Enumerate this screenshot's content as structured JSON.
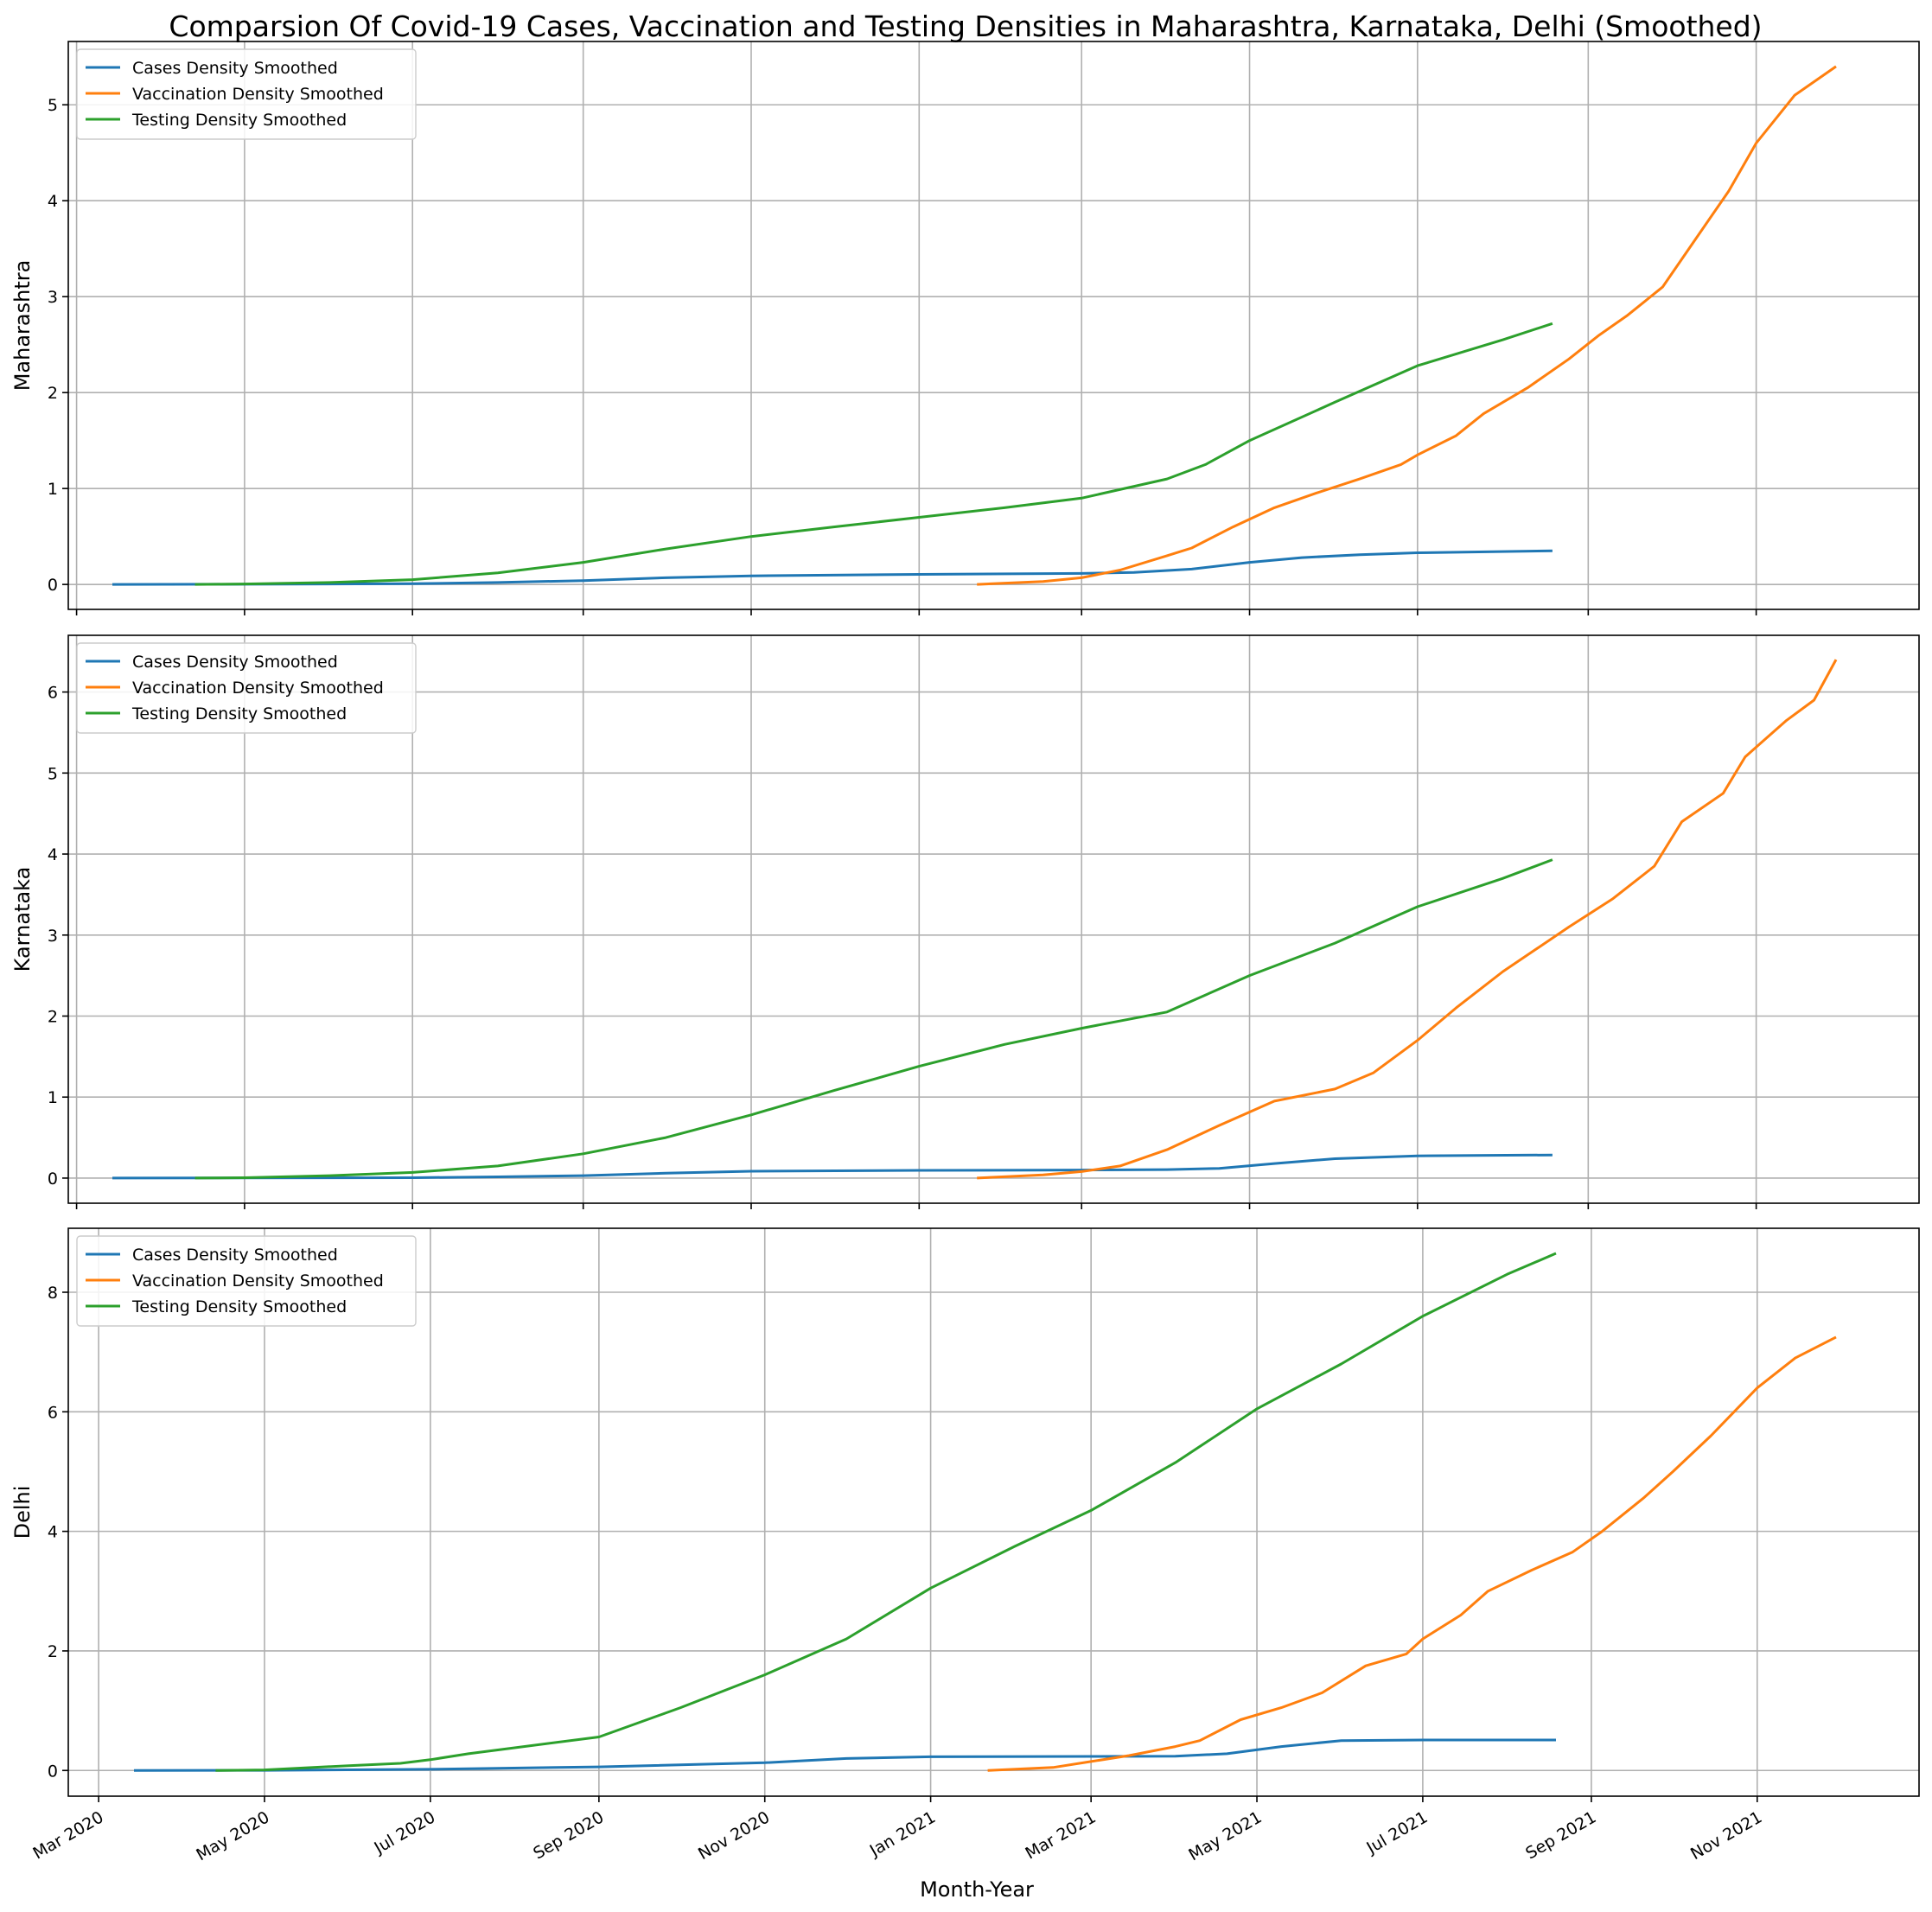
{
  "figure": {
    "title": "Comparsion Of Covid-19 Cases, Vaccination and Testing Densities in Maharashtra, Karnataka, Delhi (Smoothed)",
    "xlabel": "Month-Year"
  },
  "colors": {
    "cases": "#1f77b4",
    "vaccination": "#ff7f0e",
    "testing": "#2ca02c"
  },
  "chart_data": [
    {
      "type": "line",
      "ylabel": "Maharashtra",
      "grid": true,
      "legend_position": "top-left",
      "xlim": [
        "2020-02-14",
        "2021-11-24"
      ],
      "ylim": [
        -0.26,
        5.66
      ],
      "yticks": [
        0,
        1,
        2,
        3,
        4,
        5
      ],
      "xticks": [
        "2020-03-01",
        "2020-05-01",
        "2020-07-01",
        "2020-09-01",
        "2020-11-01",
        "2021-01-01",
        "2021-03-01",
        "2021-05-01",
        "2021-07-01",
        "2021-09-01",
        "2021-11-01"
      ],
      "xtick_labels": [
        "Mar 2020",
        "May 2020",
        "Jul 2020",
        "Sep 2020",
        "Nov 2020",
        "Jan 2021",
        "Mar 2021",
        "May 2021",
        "Jul 2021",
        "Sep 2021",
        "Nov 2021"
      ],
      "series": [
        {
          "name": "Cases Density Smoothed",
          "key": "cases",
          "points": [
            [
              "2020-03-14",
              0
            ],
            [
              "2020-05-01",
              0.002
            ],
            [
              "2020-07-01",
              0.008
            ],
            [
              "2020-08-01",
              0.02
            ],
            [
              "2020-09-01",
              0.04
            ],
            [
              "2020-10-01",
              0.07
            ],
            [
              "2020-11-01",
              0.09
            ],
            [
              "2021-01-01",
              0.105
            ],
            [
              "2021-03-01",
              0.115
            ],
            [
              "2021-03-20",
              0.125
            ],
            [
              "2021-04-10",
              0.16
            ],
            [
              "2021-05-01",
              0.23
            ],
            [
              "2021-05-20",
              0.28
            ],
            [
              "2021-06-10",
              0.31
            ],
            [
              "2021-07-01",
              0.33
            ],
            [
              "2021-08-19",
              0.35
            ]
          ]
        },
        {
          "name": "Vaccination Density Smoothed",
          "key": "vaccination",
          "points": [
            [
              "2021-01-22",
              0
            ],
            [
              "2021-02-15",
              0.03
            ],
            [
              "2021-03-01",
              0.07
            ],
            [
              "2021-03-15",
              0.15
            ],
            [
              "2021-04-01",
              0.3
            ],
            [
              "2021-04-10",
              0.38
            ],
            [
              "2021-04-25",
              0.6
            ],
            [
              "2021-05-10",
              0.8
            ],
            [
              "2021-05-25",
              0.95
            ],
            [
              "2021-06-10",
              1.1
            ],
            [
              "2021-06-25",
              1.25
            ],
            [
              "2021-07-01",
              1.35
            ],
            [
              "2021-07-15",
              1.55
            ],
            [
              "2021-07-25",
              1.78
            ],
            [
              "2021-08-10",
              2.05
            ],
            [
              "2021-08-25",
              2.35
            ],
            [
              "2021-09-05",
              2.6
            ],
            [
              "2021-09-15",
              2.8
            ],
            [
              "2021-09-28",
              3.1
            ],
            [
              "2021-10-10",
              3.6
            ],
            [
              "2021-10-22",
              4.1
            ],
            [
              "2021-11-01",
              4.6
            ],
            [
              "2021-11-15",
              5.1
            ],
            [
              "2021-11-30",
              5.4
            ]
          ]
        },
        {
          "name": "Testing Density Smoothed",
          "key": "testing",
          "points": [
            [
              "2020-04-13",
              0
            ],
            [
              "2020-05-01",
              0.005
            ],
            [
              "2020-06-01",
              0.02
            ],
            [
              "2020-07-01",
              0.05
            ],
            [
              "2020-08-01",
              0.12
            ],
            [
              "2020-09-01",
              0.23
            ],
            [
              "2020-10-01",
              0.37
            ],
            [
              "2020-11-01",
              0.5
            ],
            [
              "2020-12-01",
              0.6
            ],
            [
              "2021-01-01",
              0.7
            ],
            [
              "2021-02-01",
              0.8
            ],
            [
              "2021-03-01",
              0.9
            ],
            [
              "2021-04-01",
              1.1
            ],
            [
              "2021-04-15",
              1.25
            ],
            [
              "2021-05-01",
              1.5
            ],
            [
              "2021-06-01",
              1.9
            ],
            [
              "2021-07-01",
              2.28
            ],
            [
              "2021-08-01",
              2.55
            ],
            [
              "2021-08-19",
              2.72
            ]
          ]
        }
      ]
    },
    {
      "type": "line",
      "ylabel": "Karnataka",
      "grid": true,
      "legend_position": "top-left",
      "xlim": [
        "2020-02-14",
        "2021-11-24"
      ],
      "ylim": [
        -0.31,
        6.7
      ],
      "yticks": [
        0,
        1,
        2,
        3,
        4,
        5,
        6
      ],
      "xticks": [
        "2020-03-01",
        "2020-05-01",
        "2020-07-01",
        "2020-09-01",
        "2020-11-01",
        "2021-01-01",
        "2021-03-01",
        "2021-05-01",
        "2021-07-01",
        "2021-09-01",
        "2021-11-01"
      ],
      "xtick_labels": [
        "Mar 2020",
        "May 2020",
        "Jul 2020",
        "Sep 2020",
        "Nov 2020",
        "Jan 2021",
        "Mar 2021",
        "May 2021",
        "Jul 2021",
        "Sep 2021",
        "Nov 2021"
      ],
      "series": [
        {
          "name": "Cases Density Smoothed",
          "key": "cases",
          "points": [
            [
              "2020-03-14",
              0
            ],
            [
              "2020-07-01",
              0.005
            ],
            [
              "2020-08-01",
              0.015
            ],
            [
              "2020-09-01",
              0.03
            ],
            [
              "2020-10-01",
              0.06
            ],
            [
              "2020-11-01",
              0.085
            ],
            [
              "2021-01-01",
              0.095
            ],
            [
              "2021-03-01",
              0.1
            ],
            [
              "2021-04-01",
              0.105
            ],
            [
              "2021-04-20",
              0.12
            ],
            [
              "2021-05-10",
              0.18
            ],
            [
              "2021-06-01",
              0.24
            ],
            [
              "2021-07-01",
              0.275
            ],
            [
              "2021-08-19",
              0.285
            ]
          ]
        },
        {
          "name": "Vaccination Density Smoothed",
          "key": "vaccination",
          "points": [
            [
              "2021-01-22",
              0
            ],
            [
              "2021-02-15",
              0.04
            ],
            [
              "2021-03-01",
              0.08
            ],
            [
              "2021-03-15",
              0.15
            ],
            [
              "2021-04-01",
              0.35
            ],
            [
              "2021-04-20",
              0.65
            ],
            [
              "2021-05-10",
              0.95
            ],
            [
              "2021-06-01",
              1.1
            ],
            [
              "2021-06-15",
              1.3
            ],
            [
              "2021-07-01",
              1.7
            ],
            [
              "2021-07-15",
              2.1
            ],
            [
              "2021-08-01",
              2.55
            ],
            [
              "2021-08-25",
              3.1
            ],
            [
              "2021-09-10",
              3.45
            ],
            [
              "2021-09-25",
              3.85
            ],
            [
              "2021-10-05",
              4.4
            ],
            [
              "2021-10-20",
              4.75
            ],
            [
              "2021-10-28",
              5.2
            ],
            [
              "2021-11-12",
              5.65
            ],
            [
              "2021-11-22",
              5.9
            ],
            [
              "2021-11-30",
              6.4
            ]
          ]
        },
        {
          "name": "Testing Density Smoothed",
          "key": "testing",
          "points": [
            [
              "2020-04-13",
              0
            ],
            [
              "2020-05-01",
              0.005
            ],
            [
              "2020-06-01",
              0.03
            ],
            [
              "2020-07-01",
              0.07
            ],
            [
              "2020-08-01",
              0.15
            ],
            [
              "2020-09-01",
              0.3
            ],
            [
              "2020-10-01",
              0.5
            ],
            [
              "2020-11-01",
              0.78
            ],
            [
              "2020-12-01",
              1.08
            ],
            [
              "2021-01-01",
              1.38
            ],
            [
              "2021-02-01",
              1.65
            ],
            [
              "2021-03-01",
              1.85
            ],
            [
              "2021-04-01",
              2.05
            ],
            [
              "2021-05-01",
              2.5
            ],
            [
              "2021-06-01",
              2.9
            ],
            [
              "2021-07-01",
              3.35
            ],
            [
              "2021-08-01",
              3.7
            ],
            [
              "2021-08-19",
              3.93
            ]
          ]
        }
      ]
    },
    {
      "type": "line",
      "ylabel": "Delhi",
      "grid": true,
      "legend_position": "top-left",
      "xlim": [
        "2020-02-14",
        "2021-11-24"
      ],
      "ylim": [
        -0.43,
        9.07
      ],
      "yticks": [
        0,
        2,
        4,
        6,
        8
      ],
      "xticks": [
        "2020-03-01",
        "2020-05-01",
        "2020-07-01",
        "2020-09-01",
        "2020-11-01",
        "2021-01-01",
        "2021-03-01",
        "2021-05-01",
        "2021-07-01",
        "2021-09-01",
        "2021-11-01"
      ],
      "xtick_labels": [
        "Mar 2020",
        "May 2020",
        "Jul 2020",
        "Sep 2020",
        "Nov 2020",
        "Jan 2021",
        "Mar 2021",
        "May 2021",
        "Jul 2021",
        "Sep 2021",
        "Nov 2021"
      ],
      "series": [
        {
          "name": "Cases Density Smoothed",
          "key": "cases",
          "points": [
            [
              "2020-03-14",
              0
            ],
            [
              "2020-05-01",
              0.003
            ],
            [
              "2020-07-01",
              0.02
            ],
            [
              "2020-09-01",
              0.06
            ],
            [
              "2020-11-01",
              0.13
            ],
            [
              "2020-12-01",
              0.2
            ],
            [
              "2021-01-01",
              0.23
            ],
            [
              "2021-03-01",
              0.235
            ],
            [
              "2021-04-01",
              0.24
            ],
            [
              "2021-04-20",
              0.28
            ],
            [
              "2021-05-10",
              0.4
            ],
            [
              "2021-06-01",
              0.5
            ],
            [
              "2021-07-01",
              0.51
            ],
            [
              "2021-08-19",
              0.51
            ]
          ]
        },
        {
          "name": "Vaccination Density Smoothed",
          "key": "vaccination",
          "points": [
            [
              "2021-01-22",
              0
            ],
            [
              "2021-02-15",
              0.05
            ],
            [
              "2021-03-01",
              0.15
            ],
            [
              "2021-03-15",
              0.25
            ],
            [
              "2021-04-01",
              0.4
            ],
            [
              "2021-04-10",
              0.5
            ],
            [
              "2021-04-25",
              0.85
            ],
            [
              "2021-05-10",
              1.05
            ],
            [
              "2021-05-25",
              1.3
            ],
            [
              "2021-06-10",
              1.75
            ],
            [
              "2021-06-25",
              1.95
            ],
            [
              "2021-07-01",
              2.2
            ],
            [
              "2021-07-15",
              2.6
            ],
            [
              "2021-07-25",
              3.0
            ],
            [
              "2021-08-10",
              3.35
            ],
            [
              "2021-08-25",
              3.65
            ],
            [
              "2021-09-05",
              4.0
            ],
            [
              "2021-09-20",
              4.55
            ],
            [
              "2021-10-01",
              5.0
            ],
            [
              "2021-10-15",
              5.6
            ],
            [
              "2021-11-01",
              6.4
            ],
            [
              "2021-11-15",
              6.9
            ],
            [
              "2021-11-30",
              7.25
            ]
          ]
        },
        {
          "name": "Testing Density Smoothed",
          "key": "testing",
          "points": [
            [
              "2020-04-13",
              0
            ],
            [
              "2020-05-01",
              0.01
            ],
            [
              "2020-06-01",
              0.08
            ],
            [
              "2020-06-20",
              0.12
            ],
            [
              "2020-07-01",
              0.18
            ],
            [
              "2020-07-15",
              0.28
            ],
            [
              "2020-08-01",
              0.38
            ],
            [
              "2020-09-01",
              0.56
            ],
            [
              "2020-10-01",
              1.05
            ],
            [
              "2020-11-01",
              1.6
            ],
            [
              "2020-12-01",
              2.2
            ],
            [
              "2021-01-01",
              3.05
            ],
            [
              "2021-02-01",
              3.75
            ],
            [
              "2021-03-01",
              4.35
            ],
            [
              "2021-04-01",
              5.15
            ],
            [
              "2021-05-01",
              6.05
            ],
            [
              "2021-06-01",
              6.8
            ],
            [
              "2021-07-01",
              7.6
            ],
            [
              "2021-08-01",
              8.3
            ],
            [
              "2021-08-19",
              8.65
            ]
          ]
        }
      ]
    }
  ]
}
